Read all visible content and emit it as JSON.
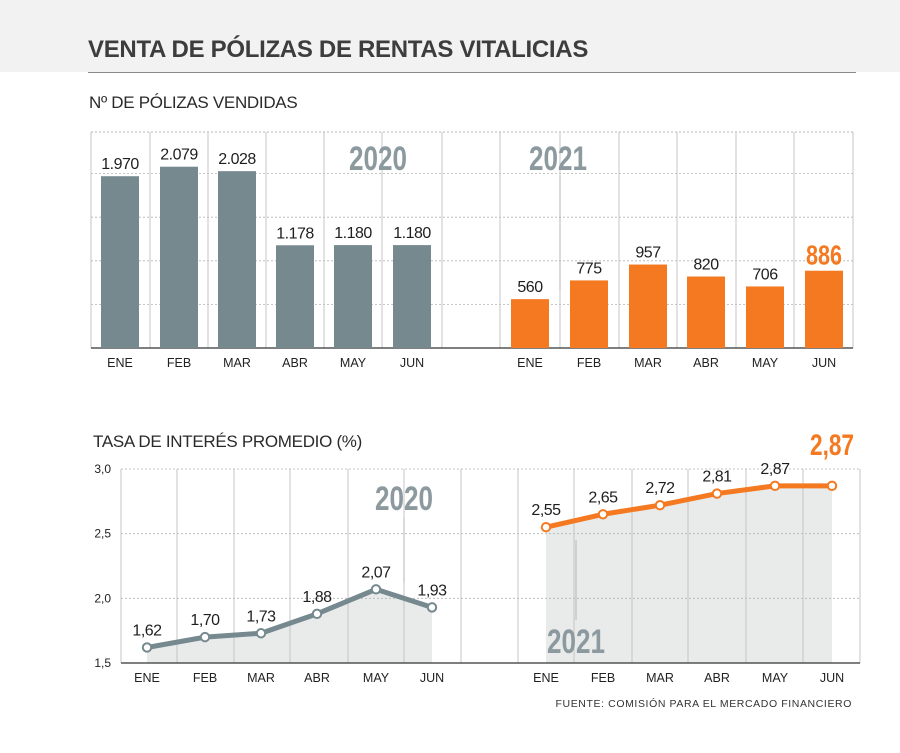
{
  "title": "VENTA DE PÓLIZAS DE RENTAS VITALICIAS",
  "source": "FUENTE: COMISIÓN PARA EL MERCADO FINANCIERO",
  "colors": {
    "series_2020": "#76898f",
    "series_2021": "#f47920",
    "text": "#222222",
    "area_fill": "#e9ebeb"
  },
  "chart_data": [
    {
      "type": "bar",
      "title": "Nº DE PÓLIZAS VENDIDAS",
      "categories": [
        "ENE",
        "FEB",
        "MAR",
        "ABR",
        "MAY",
        "JUN"
      ],
      "series": [
        {
          "name": "2020",
          "values": [
            1970,
            2079,
            2028,
            1178,
            1180,
            1180
          ],
          "labels": [
            "1.970",
            "2.079",
            "2.028",
            "1.178",
            "1.180",
            "1.180"
          ]
        },
        {
          "name": "2021",
          "values": [
            560,
            775,
            957,
            820,
            706,
            886
          ],
          "labels": [
            "560",
            "775",
            "957",
            "820",
            "706",
            "886"
          ]
        }
      ],
      "ylim": [
        0,
        2500
      ],
      "grid": true
    },
    {
      "type": "line",
      "title": "TASA DE INTERÉS PROMEDIO (%)",
      "categories": [
        "ENE",
        "FEB",
        "MAR",
        "ABR",
        "MAY",
        "JUN"
      ],
      "series": [
        {
          "name": "2020",
          "values": [
            1.62,
            1.7,
            1.73,
            1.88,
            2.07,
            1.93
          ],
          "labels": [
            "1,62",
            "1,70",
            "1,73",
            "1,88",
            "2,07",
            "1,93"
          ]
        },
        {
          "name": "2021",
          "values": [
            2.55,
            2.65,
            2.72,
            2.81,
            2.87,
            2.87
          ],
          "labels": [
            "2,55",
            "2,65",
            "2,72",
            "2,81",
            "2,87",
            "2,87"
          ]
        }
      ],
      "ylim": [
        1.5,
        3.0
      ],
      "yticks": [
        "1,5",
        "2,0",
        "2,5",
        "3,0"
      ],
      "grid": true
    }
  ]
}
